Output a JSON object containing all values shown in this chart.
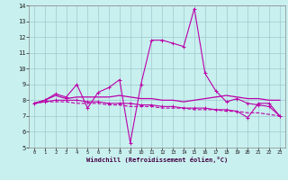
{
  "title": "",
  "xlabel": "Windchill (Refroidissement éolien,°C)",
  "ylabel": "",
  "bg_color": "#c8f0ee",
  "grid_color": "#a0c8d0",
  "line_color": "#bb00aa",
  "xlim": [
    -0.5,
    23.5
  ],
  "ylim": [
    5,
    14
  ],
  "yticks": [
    5,
    6,
    7,
    8,
    9,
    10,
    11,
    12,
    13,
    14
  ],
  "xticks": [
    0,
    1,
    2,
    3,
    4,
    5,
    6,
    7,
    8,
    9,
    10,
    11,
    12,
    13,
    14,
    15,
    16,
    17,
    18,
    19,
    20,
    21,
    22,
    23
  ],
  "series1_x": [
    0,
    1,
    2,
    3,
    4,
    5,
    6,
    7,
    8,
    9,
    10,
    11,
    12,
    13,
    14,
    15,
    16,
    17,
    18,
    19,
    20,
    21,
    22,
    23
  ],
  "series1_y": [
    7.8,
    8.0,
    8.4,
    8.2,
    9.0,
    7.5,
    8.5,
    8.8,
    9.3,
    5.3,
    9.0,
    11.8,
    11.8,
    11.6,
    11.4,
    13.8,
    9.7,
    8.6,
    7.9,
    8.1,
    7.8,
    7.7,
    7.6,
    7.0
  ],
  "series2_x": [
    0,
    1,
    2,
    3,
    4,
    5,
    6,
    7,
    8,
    9,
    10,
    11,
    12,
    13,
    14,
    15,
    16,
    17,
    18,
    19,
    20,
    21,
    22,
    23
  ],
  "series2_y": [
    7.8,
    8.0,
    8.3,
    8.1,
    8.2,
    8.2,
    8.2,
    8.2,
    8.3,
    8.2,
    8.1,
    8.1,
    8.0,
    8.0,
    7.9,
    8.0,
    8.1,
    8.2,
    8.3,
    8.2,
    8.1,
    8.1,
    8.0,
    8.0
  ],
  "series3_x": [
    0,
    1,
    2,
    3,
    4,
    5,
    6,
    7,
    8,
    9,
    10,
    11,
    12,
    13,
    14,
    15,
    16,
    17,
    18,
    19,
    20,
    21,
    22,
    23
  ],
  "series3_y": [
    7.8,
    7.9,
    8.0,
    8.0,
    8.0,
    7.9,
    7.9,
    7.8,
    7.8,
    7.8,
    7.7,
    7.7,
    7.6,
    7.6,
    7.5,
    7.5,
    7.5,
    7.4,
    7.4,
    7.3,
    6.9,
    7.8,
    7.8,
    7.0
  ],
  "series4_x": [
    0,
    1,
    2,
    3,
    4,
    5,
    6,
    7,
    8,
    9,
    10,
    11,
    12,
    13,
    14,
    15,
    16,
    17,
    18,
    19,
    20,
    21,
    22,
    23
  ],
  "series4_y": [
    7.8,
    7.9,
    7.9,
    7.9,
    7.8,
    7.8,
    7.8,
    7.7,
    7.7,
    7.6,
    7.6,
    7.6,
    7.5,
    7.5,
    7.5,
    7.4,
    7.4,
    7.4,
    7.3,
    7.3,
    7.2,
    7.2,
    7.1,
    7.0
  ]
}
